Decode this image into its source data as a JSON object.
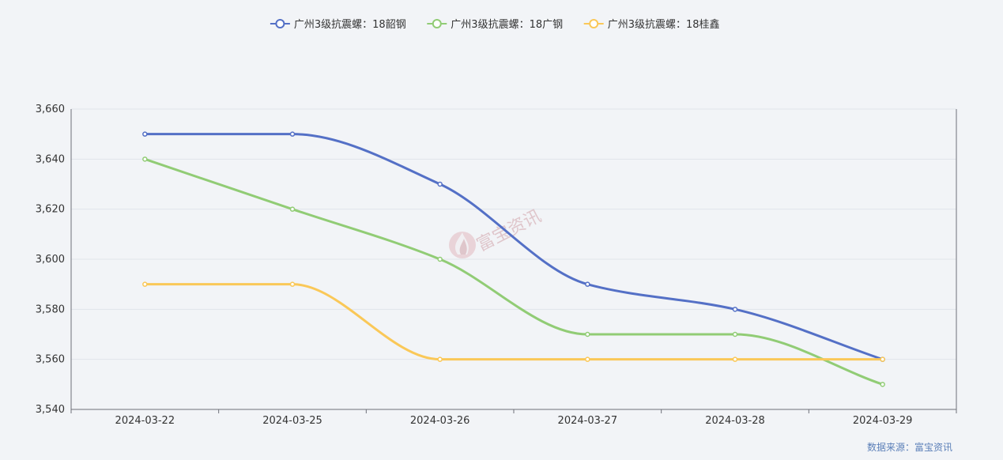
{
  "chart_data": {
    "type": "line",
    "title": "",
    "xlabel": "",
    "ylabel": "",
    "categories": [
      "2024-03-22",
      "2024-03-25",
      "2024-03-26",
      "2024-03-27",
      "2024-03-28",
      "2024-03-29"
    ],
    "series": [
      {
        "name": "广州3级抗震螺：18韶钢",
        "color": "#5470c6",
        "values": [
          3650,
          3650,
          3630,
          3590,
          3580,
          3560
        ]
      },
      {
        "name": "广州3级抗震螺：18广钢",
        "color": "#91cc75",
        "values": [
          3640,
          3620,
          3600,
          3570,
          3570,
          3550
        ]
      },
      {
        "name": "广州3级抗震螺：18桂鑫",
        "color": "#fac858",
        "values": [
          3590,
          3590,
          3560,
          3560,
          3560,
          3560
        ]
      }
    ],
    "ylim": [
      3540,
      3660
    ],
    "yticks": [
      3540,
      3560,
      3580,
      3600,
      3620,
      3640,
      3660
    ],
    "ytick_labels": [
      "3,540",
      "3,560",
      "3,580",
      "3,600",
      "3,620",
      "3,640",
      "3,660"
    ],
    "grid": true,
    "legend_position": "top-center",
    "smooth": true
  },
  "watermark": "富宝资讯",
  "source_note": "数据来源：富宝资讯"
}
